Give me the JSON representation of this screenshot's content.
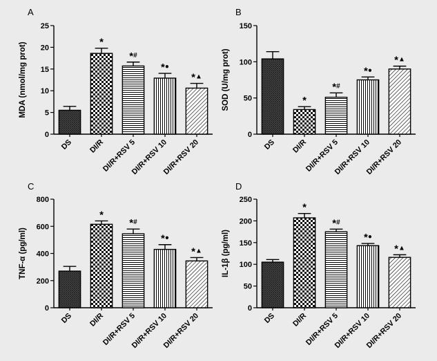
{
  "categories": [
    "DS",
    "DI/R",
    "DI/R+RSV 5",
    "DI/R+RSV 10",
    "DI/R+RSV 20"
  ],
  "annotation_symbols": [
    "",
    "*",
    "*#",
    "*●",
    "*▲"
  ],
  "fill_patterns": [
    "dense-crosshatch",
    "checkerboard",
    "horizontal-lines",
    "vertical-lines",
    "diagonal-lines"
  ],
  "colors": {
    "bar_edge": "#000000",
    "bar_fill": "#ffffff",
    "background": "#ebebeb"
  },
  "chart_data": [
    {
      "panel": "A",
      "type": "bar",
      "categories": [
        "DS",
        "DI/R",
        "DI/R+RSV 5",
        "DI/R+RSV 10",
        "DI/R+RSV 20"
      ],
      "values": [
        5.5,
        18.6,
        15.7,
        12.9,
        10.6
      ],
      "errors": [
        0.9,
        1.2,
        0.9,
        1.1,
        1.1
      ],
      "annotations": [
        "",
        "*",
        "*#",
        "*●",
        "*▲"
      ],
      "ylabel": "MDA (nmol/mg prot)",
      "ylim": [
        0,
        25
      ],
      "yticks": [
        0,
        5,
        10,
        15,
        20,
        25
      ],
      "grid": false
    },
    {
      "panel": "B",
      "type": "bar",
      "categories": [
        "DS",
        "DI/R",
        "DI/R+RSV 5",
        "DI/R+RSV 10",
        "DI/R+RSV 20"
      ],
      "values": [
        104,
        34,
        51,
        75,
        90
      ],
      "errors": [
        10,
        4,
        6,
        4,
        4
      ],
      "annotations": [
        "",
        "*",
        "*#",
        "*●",
        "*▲"
      ],
      "ylabel": "SOD (U/mg prot)",
      "ylim": [
        0,
        150
      ],
      "yticks": [
        0,
        50,
        100,
        150
      ],
      "grid": false
    },
    {
      "panel": "C",
      "type": "bar",
      "categories": [
        "DS",
        "DI/R",
        "DI/R+RSV 5",
        "DI/R+RSV 10",
        "DI/R+RSV 20"
      ],
      "values": [
        270,
        615,
        545,
        430,
        345
      ],
      "errors": [
        35,
        25,
        35,
        35,
        25
      ],
      "annotations": [
        "",
        "*",
        "*#",
        "*●",
        "*▲"
      ],
      "ylabel": "TNF-α (pg/ml)",
      "ylim": [
        0,
        800
      ],
      "yticks": [
        0,
        200,
        400,
        600,
        800
      ],
      "grid": false
    },
    {
      "panel": "D",
      "type": "bar",
      "categories": [
        "DS",
        "DI/R",
        "DI/R+RSV 5",
        "DI/R+RSV 10",
        "DI/R+RSV 20"
      ],
      "values": [
        105,
        207,
        175,
        143,
        116
      ],
      "errors": [
        6,
        10,
        6,
        5,
        6
      ],
      "annotations": [
        "",
        "*",
        "*#",
        "*●",
        "*▲"
      ],
      "ylabel": "IL-1β (pg/ml)",
      "ylim": [
        0,
        250
      ],
      "yticks": [
        0,
        50,
        100,
        150,
        200,
        250
      ],
      "grid": false
    }
  ]
}
